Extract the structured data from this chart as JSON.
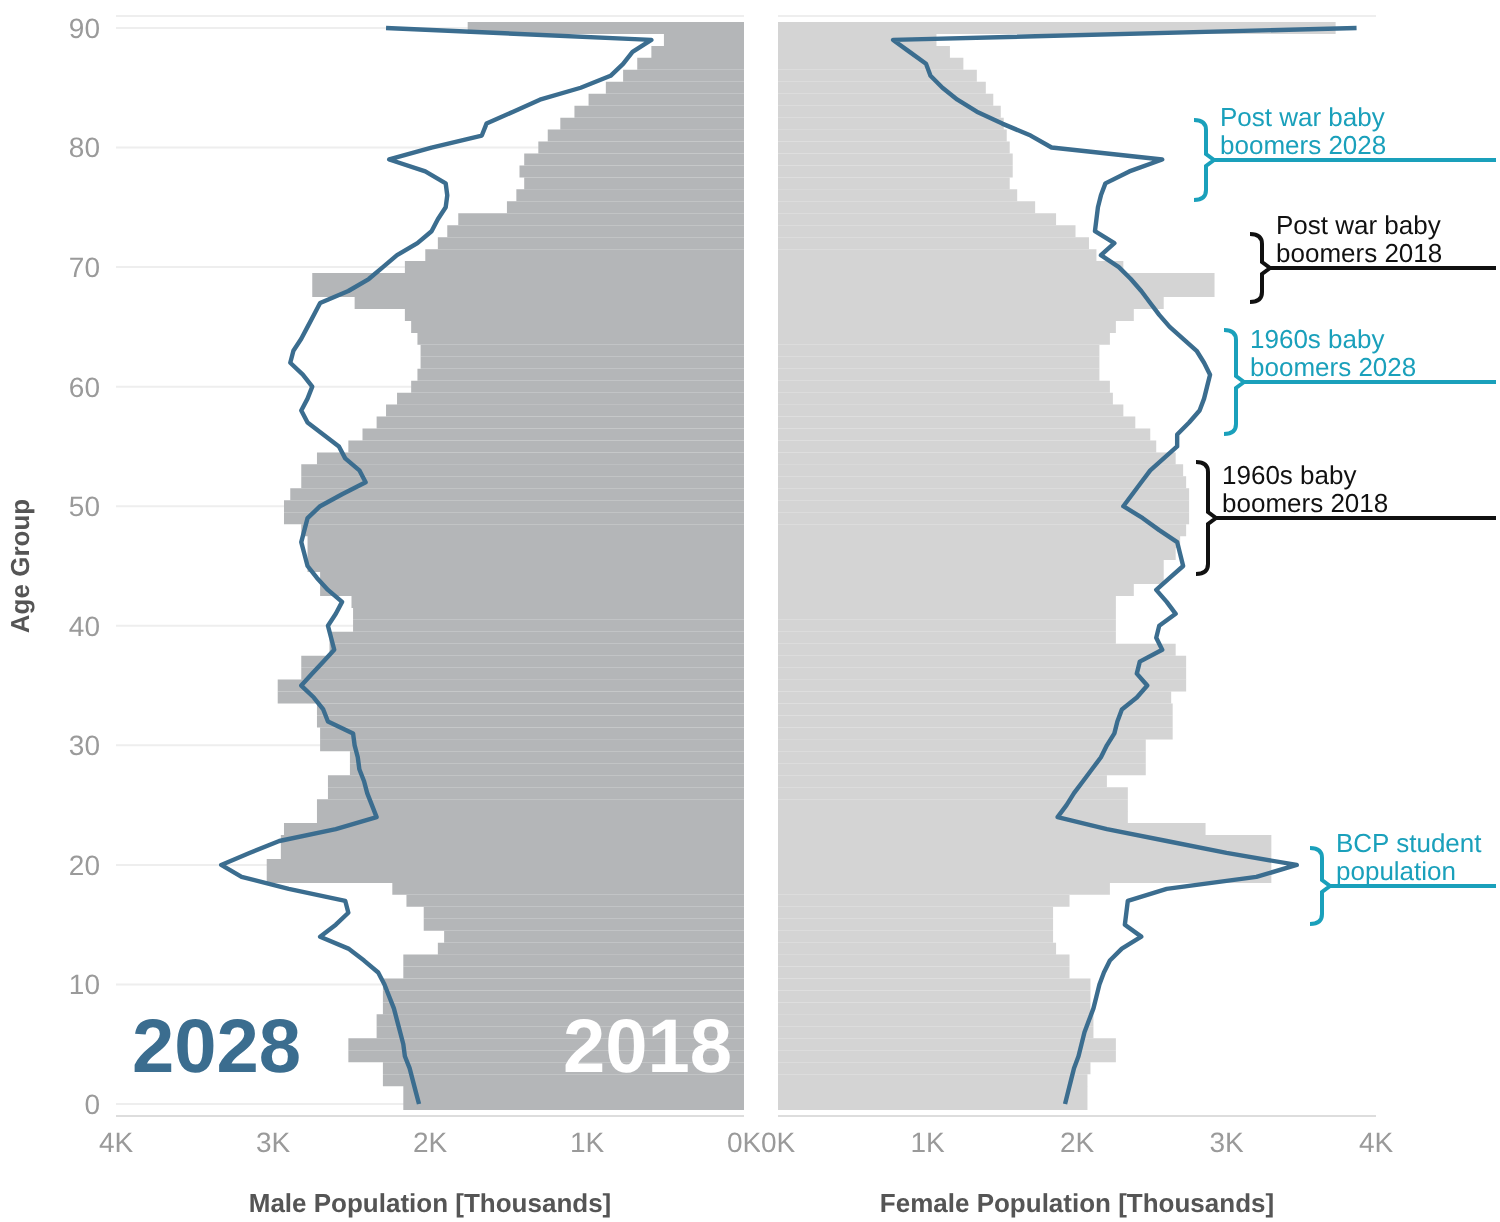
{
  "chart_data": [
    {
      "type": "bar",
      "orientation": "horizontal",
      "xlabel": "Male Population [Thousands]",
      "ylabel": "Age Group",
      "grid": "y",
      "x": [
        0,
        1,
        2,
        3,
        4,
        5,
        6,
        7,
        8,
        9,
        10,
        11,
        12,
        13,
        14,
        15,
        16,
        17,
        18,
        19,
        20,
        21,
        22,
        23,
        24,
        25,
        26,
        27,
        28,
        29,
        30,
        31,
        32,
        33,
        34,
        35,
        36,
        37,
        38,
        39,
        40,
        41,
        42,
        43,
        44,
        45,
        46,
        47,
        48,
        49,
        50,
        51,
        52,
        53,
        54,
        55,
        56,
        57,
        58,
        59,
        60,
        61,
        62,
        63,
        64,
        65,
        66,
        67,
        68,
        69,
        70,
        71,
        72,
        73,
        74,
        75,
        76,
        77,
        78,
        79,
        80,
        81,
        82,
        83,
        84,
        85,
        86,
        87,
        88,
        89,
        90
      ],
      "xlim": [
        4,
        0
      ],
      "xticks": [
        {
          "value": 4,
          "label": "4K"
        },
        {
          "value": 3,
          "label": "3K"
        },
        {
          "value": 2,
          "label": "2K"
        },
        {
          "value": 1,
          "label": "1K"
        },
        {
          "value": 0,
          "label": "0K"
        }
      ],
      "ylim": [
        -1,
        91
      ],
      "yticks": [
        0,
        10,
        20,
        30,
        40,
        50,
        60,
        70,
        80,
        90
      ],
      "series": [
        {
          "name": "2018",
          "color": "#b4b6b8",
          "values": [
            2.17,
            2.17,
            2.3,
            2.3,
            2.52,
            2.52,
            2.34,
            2.34,
            2.3,
            2.3,
            2.3,
            2.17,
            2.17,
            1.95,
            1.91,
            2.04,
            2.04,
            2.15,
            2.24,
            3.04,
            3.04,
            2.95,
            2.95,
            2.93,
            2.72,
            2.72,
            2.65,
            2.65,
            2.51,
            2.51,
            2.7,
            2.7,
            2.72,
            2.72,
            2.97,
            2.97,
            2.82,
            2.82,
            2.64,
            2.64,
            2.49,
            2.49,
            2.5,
            2.7,
            2.7,
            2.78,
            2.78,
            2.78,
            2.82,
            2.93,
            2.93,
            2.89,
            2.82,
            2.82,
            2.72,
            2.52,
            2.43,
            2.34,
            2.28,
            2.21,
            2.12,
            2.08,
            2.06,
            2.06,
            2.08,
            2.12,
            2.16,
            2.48,
            2.75,
            2.75,
            2.16,
            2.03,
            1.95,
            1.89,
            1.82,
            1.51,
            1.45,
            1.4,
            1.43,
            1.4,
            1.31,
            1.25,
            1.17,
            1.08,
            0.99,
            0.88,
            0.77,
            0.68,
            0.59,
            0.51,
            1.76
          ]
        },
        {
          "name": "2028",
          "type": "line",
          "color": "#3b6d8f",
          "values": [
            2.07,
            2.09,
            2.11,
            2.13,
            2.16,
            2.17,
            2.19,
            2.21,
            2.23,
            2.26,
            2.29,
            2.33,
            2.42,
            2.52,
            2.7,
            2.6,
            2.52,
            2.54,
            2.9,
            3.2,
            3.33,
            3.15,
            2.96,
            2.6,
            2.34,
            2.37,
            2.4,
            2.42,
            2.45,
            2.46,
            2.48,
            2.49,
            2.65,
            2.68,
            2.74,
            2.82,
            2.75,
            2.68,
            2.61,
            2.63,
            2.65,
            2.6,
            2.56,
            2.65,
            2.72,
            2.78,
            2.8,
            2.82,
            2.8,
            2.78,
            2.7,
            2.56,
            2.41,
            2.45,
            2.54,
            2.58,
            2.68,
            2.78,
            2.82,
            2.78,
            2.75,
            2.81,
            2.89,
            2.87,
            2.82,
            2.78,
            2.74,
            2.7,
            2.52,
            2.39,
            2.3,
            2.21,
            2.08,
            1.99,
            1.95,
            1.9,
            1.89,
            1.9,
            2.03,
            2.26,
            1.99,
            1.67,
            1.64,
            1.47,
            1.3,
            1.04,
            0.85,
            0.77,
            0.71,
            0.59,
            2.28
          ]
        }
      ]
    },
    {
      "type": "bar",
      "orientation": "horizontal",
      "xlabel": "Female Population [Thousands]",
      "grid": "y",
      "tick_labels": "x",
      "x": [
        0,
        1,
        2,
        3,
        4,
        5,
        6,
        7,
        8,
        9,
        10,
        11,
        12,
        13,
        14,
        15,
        16,
        17,
        18,
        19,
        20,
        21,
        22,
        23,
        24,
        25,
        26,
        27,
        28,
        29,
        30,
        31,
        32,
        33,
        34,
        35,
        36,
        37,
        38,
        39,
        40,
        41,
        42,
        43,
        44,
        45,
        46,
        47,
        48,
        49,
        50,
        51,
        52,
        53,
        54,
        55,
        56,
        57,
        58,
        59,
        60,
        61,
        62,
        63,
        64,
        65,
        66,
        67,
        68,
        69,
        70,
        71,
        72,
        73,
        74,
        75,
        76,
        77,
        78,
        79,
        80,
        81,
        82,
        83,
        84,
        85,
        86,
        87,
        88,
        89,
        90
      ],
      "xlim": [
        0,
        4
      ],
      "xticks": [
        {
          "value": 0,
          "label": "0K"
        },
        {
          "value": 1,
          "label": "1K"
        },
        {
          "value": 2,
          "label": "2K"
        },
        {
          "value": 3,
          "label": "3K"
        },
        {
          "value": 4,
          "label": "4K"
        }
      ],
      "ylim": [
        -1,
        91
      ],
      "yticks": [
        0,
        10,
        20,
        30,
        40,
        50,
        60,
        70,
        80,
        90
      ],
      "series": [
        {
          "color": "#d4d4d4",
          "values": [
            2.07,
            2.07,
            2.07,
            2.09,
            2.26,
            2.26,
            2.11,
            2.11,
            2.09,
            2.09,
            2.09,
            1.95,
            1.95,
            1.86,
            1.84,
            1.84,
            1.84,
            1.95,
            2.22,
            3.3,
            3.3,
            3.3,
            3.3,
            2.86,
            2.34,
            2.34,
            2.34,
            2.2,
            2.46,
            2.46,
            2.46,
            2.64,
            2.64,
            2.64,
            2.63,
            2.73,
            2.73,
            2.73,
            2.66,
            2.26,
            2.26,
            2.26,
            2.26,
            2.38,
            2.58,
            2.58,
            2.66,
            2.69,
            2.73,
            2.75,
            2.75,
            2.75,
            2.73,
            2.71,
            2.66,
            2.53,
            2.49,
            2.39,
            2.31,
            2.24,
            2.22,
            2.15,
            2.15,
            2.15,
            2.22,
            2.26,
            2.38,
            2.58,
            2.92,
            2.92,
            2.31,
            2.13,
            2.08,
            1.99,
            1.86,
            1.72,
            1.6,
            1.55,
            1.57,
            1.57,
            1.55,
            1.53,
            1.51,
            1.49,
            1.44,
            1.39,
            1.33,
            1.24,
            1.15,
            1.06,
            3.73
          ]
        },
        {
          "type": "line",
          "color": "#3b6d8f",
          "values": [
            1.92,
            1.94,
            1.96,
            1.98,
            2.01,
            2.03,
            2.05,
            2.08,
            2.11,
            2.13,
            2.15,
            2.18,
            2.22,
            2.3,
            2.43,
            2.32,
            2.33,
            2.34,
            2.6,
            3.2,
            3.47,
            3.0,
            2.6,
            2.2,
            1.87,
            1.93,
            1.98,
            2.04,
            2.1,
            2.16,
            2.2,
            2.25,
            2.27,
            2.3,
            2.4,
            2.47,
            2.4,
            2.42,
            2.57,
            2.53,
            2.55,
            2.66,
            2.6,
            2.53,
            2.62,
            2.71,
            2.69,
            2.67,
            2.55,
            2.44,
            2.31,
            2.37,
            2.43,
            2.49,
            2.58,
            2.67,
            2.67,
            2.75,
            2.82,
            2.85,
            2.87,
            2.89,
            2.85,
            2.8,
            2.71,
            2.62,
            2.55,
            2.49,
            2.43,
            2.36,
            2.28,
            2.16,
            2.25,
            2.12,
            2.13,
            2.14,
            2.16,
            2.19,
            2.35,
            2.57,
            1.83,
            1.69,
            1.5,
            1.33,
            1.2,
            1.1,
            1.02,
            0.99,
            0.88,
            0.77,
            3.87
          ]
        }
      ],
      "annotations": [
        "Post war baby boomers 2028",
        "Post war baby boomers 2018",
        "1960s baby boomers 2028",
        "1960s baby boomers 2018",
        "BCP student population"
      ]
    }
  ]
}
